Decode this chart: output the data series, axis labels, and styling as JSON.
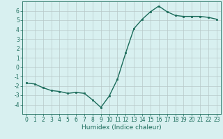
{
  "x": [
    0,
    1,
    2,
    3,
    4,
    5,
    6,
    7,
    8,
    9,
    10,
    11,
    12,
    13,
    14,
    15,
    16,
    17,
    18,
    19,
    20,
    21,
    22,
    23
  ],
  "y": [
    -1.7,
    -1.8,
    -2.2,
    -2.5,
    -2.6,
    -2.8,
    -2.7,
    -2.8,
    -3.5,
    -4.3,
    -3.1,
    -1.3,
    1.5,
    4.1,
    5.1,
    5.9,
    6.5,
    5.9,
    5.5,
    5.4,
    5.4,
    5.4,
    5.3,
    5.1
  ],
  "line_color": "#1a6b5a",
  "marker": "s",
  "marker_size": 1.8,
  "background_color": "#d8f0f0",
  "grid_color": "#b8c8c8",
  "xlabel": "Humidex (Indice chaleur)",
  "ylim": [
    -5,
    7
  ],
  "xlim": [
    -0.5,
    23.5
  ],
  "yticks": [
    -4,
    -3,
    -2,
    -1,
    0,
    1,
    2,
    3,
    4,
    5,
    6
  ],
  "xticks": [
    0,
    1,
    2,
    3,
    4,
    5,
    6,
    7,
    8,
    9,
    10,
    11,
    12,
    13,
    14,
    15,
    16,
    17,
    18,
    19,
    20,
    21,
    22,
    23
  ],
  "tick_label_fontsize": 5.5,
  "xlabel_fontsize": 6.5,
  "line_width": 1.0
}
